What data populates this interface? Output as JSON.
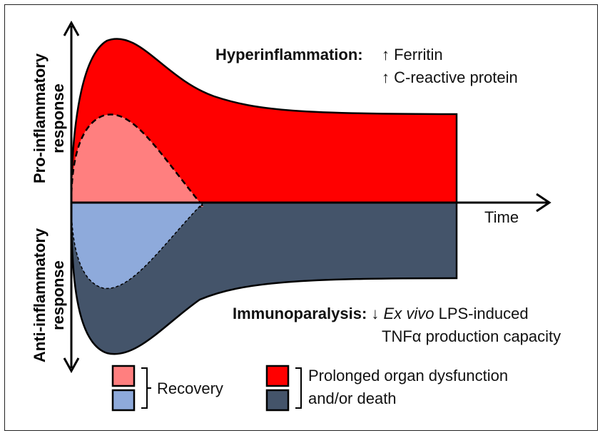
{
  "axes": {
    "x_label": "Time",
    "y_label_top_line1": "Pro-inflammatory",
    "y_label_top_line2": "response",
    "y_label_bottom_line1": "Anti-inflammatory",
    "y_label_bottom_line2": "response"
  },
  "annotations": {
    "hyper_title": "Hyperinflammation:",
    "hyper_marker1": "↑ Ferritin",
    "hyper_marker2": "↑ C-reactive protein",
    "immuno_title": "Immunoparalysis:",
    "immuno_arrow": "↓",
    "immuno_italic": "Ex vivo",
    "immuno_rest": "LPS-induced",
    "immuno_line2": "TNFα  production capacity"
  },
  "legend": {
    "recovery": "Recovery",
    "dysfunction_line1": "Prolonged organ dysfunction",
    "dysfunction_line2": "and/or death"
  },
  "colors": {
    "pro_fill": "#ff0000",
    "pro_recovery_fill": "#ff7f7f",
    "anti_fill": "#44546a",
    "anti_recovery_fill": "#8eaadb",
    "outline": "#000000"
  }
}
